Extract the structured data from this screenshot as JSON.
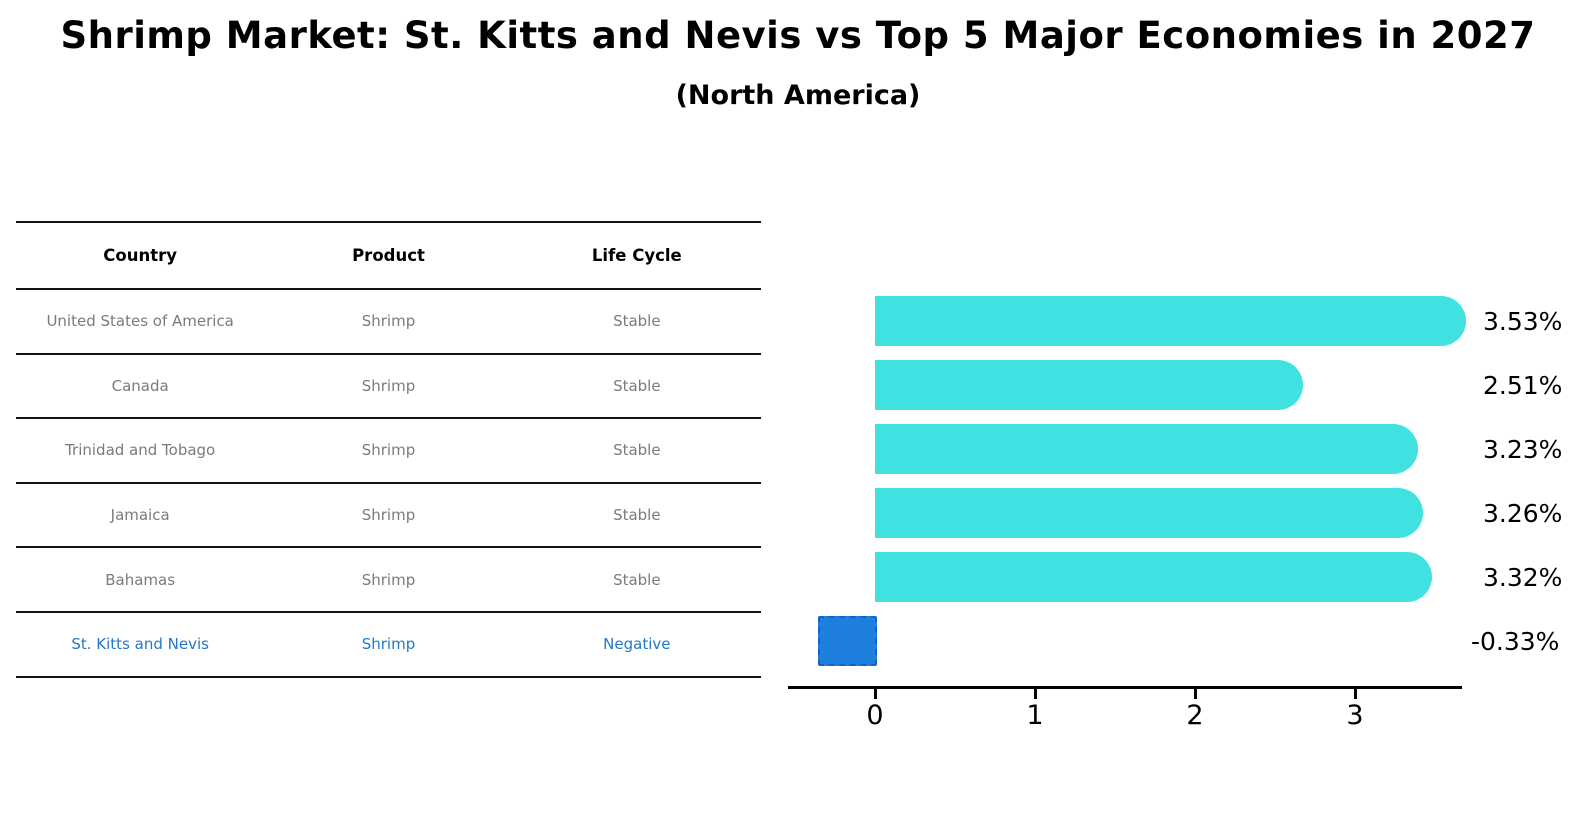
{
  "header": {
    "title": "Shrimp Market: St. Kitts and Nevis vs Top 5 Major Economies in 2027",
    "subtitle": "(North America)"
  },
  "table": {
    "columns": [
      "Country",
      "Product",
      "Life Cycle"
    ],
    "rows": [
      {
        "country": "United States of America",
        "product": "Shrimp",
        "life_cycle": "Stable",
        "highlight": false
      },
      {
        "country": "Canada",
        "product": "Shrimp",
        "life_cycle": "Stable",
        "highlight": false
      },
      {
        "country": "Trinidad and Tobago",
        "product": "Shrimp",
        "life_cycle": "Stable",
        "highlight": false
      },
      {
        "country": "Jamaica",
        "product": "Shrimp",
        "life_cycle": "Stable",
        "highlight": false
      },
      {
        "country": "Bahamas",
        "product": "Shrimp",
        "life_cycle": "Stable",
        "highlight": false
      },
      {
        "country": "St. Kitts and Nevis",
        "product": "Shrimp",
        "life_cycle": "Negative",
        "highlight": true
      }
    ]
  },
  "chart_data": {
    "type": "bar",
    "orientation": "horizontal",
    "title": "Shrimp Market: St. Kitts and Nevis vs Top 5 Major Economies in 2027",
    "subtitle": "(North America)",
    "categories": [
      "United States of America",
      "Canada",
      "Trinidad and Tobago",
      "Jamaica",
      "Bahamas",
      "St. Kitts and Nevis"
    ],
    "values": [
      3.53,
      2.51,
      3.23,
      3.26,
      3.32,
      -0.33
    ],
    "value_labels": [
      "3.53%",
      "2.51%",
      "3.23%",
      "3.26%",
      "3.32%",
      "-0.33%"
    ],
    "xlabel": "",
    "ylabel": "",
    "xticks": [
      0,
      1,
      2,
      3
    ],
    "xlim": [
      -0.55,
      3.72
    ],
    "grid": false,
    "legend": "none",
    "colors": {
      "bar_positive": "#40E1E1",
      "bar_negative_fill": "#1E7FDE",
      "bar_negative_border": "#1462C6",
      "highlight_text": "#2478C8",
      "row_text": "#7b7b7b",
      "axis_text": "#000000"
    }
  }
}
